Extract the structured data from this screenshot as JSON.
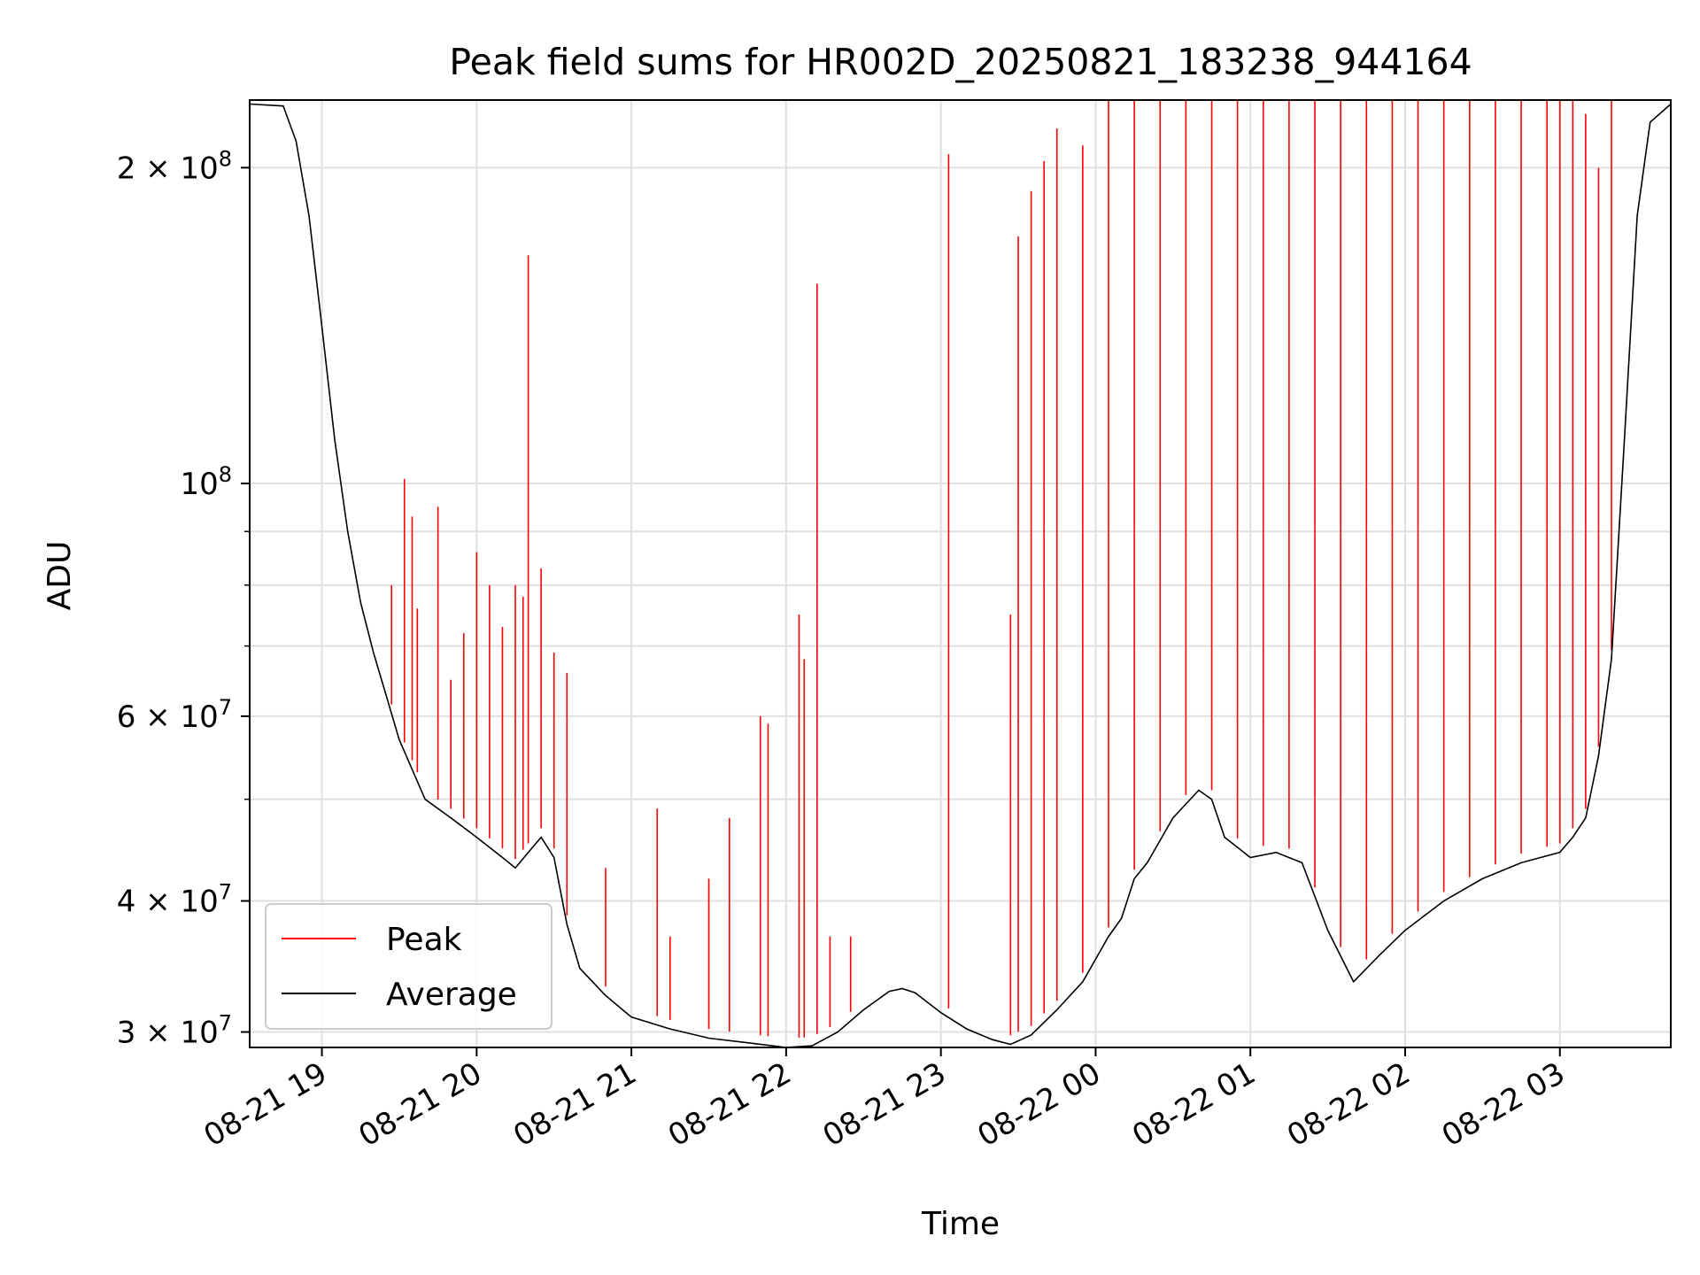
{
  "chart_data": {
    "type": "line",
    "title": "Peak field sums for HR002D_20250821_183238_944164",
    "xlabel": "Time",
    "ylabel": "ADU",
    "x_scale": "time",
    "y_scale": "log",
    "xlim": [
      "2025-08-21 18:32",
      "2025-08-22 03:43"
    ],
    "ylim": [
      29000000.0,
      232000000.0
    ],
    "x_ticks": [
      "2025-08-21 19:00",
      "2025-08-21 20:00",
      "2025-08-21 21:00",
      "2025-08-21 22:00",
      "2025-08-21 23:00",
      "2025-08-22 00:00",
      "2025-08-22 01:00",
      "2025-08-22 02:00",
      "2025-08-22 03:00"
    ],
    "x_tick_labels": [
      "08-21 19",
      "08-21 20",
      "08-21 21",
      "08-21 22",
      "08-21 23",
      "08-22 00",
      "08-22 01",
      "08-22 02",
      "08-22 03"
    ],
    "y_major_ticks": [
      {
        "value": 30000000.0,
        "mantissa": "3",
        "exp": "7"
      },
      {
        "value": 40000000.0,
        "mantissa": "4",
        "exp": "7"
      },
      {
        "value": 60000000.0,
        "mantissa": "6",
        "exp": "7"
      },
      {
        "value": 100000000.0,
        "mantissa": "",
        "exp": "8"
      },
      {
        "value": 200000000.0,
        "mantissa": "2",
        "exp": "8"
      }
    ],
    "y_minor_ticks": [
      50000000.0,
      70000000.0,
      80000000.0,
      90000000.0
    ],
    "grid": true,
    "legend": "lower-left",
    "colors": {
      "peak": "#ff0000",
      "average": "#000000",
      "grid": "#e0e0e0"
    },
    "series": [
      {
        "name": "Average",
        "color": "#000000",
        "x": [
          "2025-08-21 18:32",
          "2025-08-21 18:45",
          "2025-08-21 18:50",
          "2025-08-21 18:55",
          "2025-08-21 19:00",
          "2025-08-21 19:05",
          "2025-08-21 19:10",
          "2025-08-21 19:15",
          "2025-08-21 19:20",
          "2025-08-21 19:30",
          "2025-08-21 19:40",
          "2025-08-21 19:50",
          "2025-08-21 20:00",
          "2025-08-21 20:10",
          "2025-08-21 20:15",
          "2025-08-21 20:20",
          "2025-08-21 20:25",
          "2025-08-21 20:30",
          "2025-08-21 20:35",
          "2025-08-21 20:40",
          "2025-08-21 20:50",
          "2025-08-21 21:00",
          "2025-08-21 21:15",
          "2025-08-21 21:30",
          "2025-08-21 21:45",
          "2025-08-21 22:00",
          "2025-08-21 22:10",
          "2025-08-21 22:20",
          "2025-08-21 22:30",
          "2025-08-21 22:40",
          "2025-08-21 22:45",
          "2025-08-21 22:50",
          "2025-08-21 23:00",
          "2025-08-21 23:10",
          "2025-08-21 23:20",
          "2025-08-21 23:27",
          "2025-08-21 23:35",
          "2025-08-21 23:45",
          "2025-08-21 23:55",
          "2025-08-22 00:05",
          "2025-08-22 00:10",
          "2025-08-22 00:15",
          "2025-08-22 00:20",
          "2025-08-22 00:30",
          "2025-08-22 00:40",
          "2025-08-22 00:45",
          "2025-08-22 00:50",
          "2025-08-22 01:00",
          "2025-08-22 01:10",
          "2025-08-22 01:20",
          "2025-08-22 01:30",
          "2025-08-22 01:40",
          "2025-08-22 01:50",
          "2025-08-22 02:00",
          "2025-08-22 02:15",
          "2025-08-22 02:30",
          "2025-08-22 02:45",
          "2025-08-22 03:00",
          "2025-08-22 03:05",
          "2025-08-22 03:10",
          "2025-08-22 03:15",
          "2025-08-22 03:20",
          "2025-08-22 03:25",
          "2025-08-22 03:30",
          "2025-08-22 03:35",
          "2025-08-22 03:43"
        ],
        "values": [
          230000000.0,
          229000000.0,
          212000000.0,
          180000000.0,
          141000000.0,
          110000000.0,
          90000000.0,
          77000000.0,
          69000000.0,
          57000000.0,
          50000000.0,
          48000000.0,
          46000000.0,
          44000000.0,
          43000000.0,
          44500000.0,
          46000000.0,
          44000000.0,
          38000000.0,
          34500000.0,
          32500000.0,
          31000000.0,
          30200000.0,
          29600000.0,
          29300000.0,
          29000000.0,
          29100000.0,
          30000000.0,
          31500000.0,
          32800000.0,
          33000000.0,
          32700000.0,
          31300000.0,
          30200000.0,
          29500000.0,
          29200000.0,
          29800000.0,
          31500000.0,
          33500000.0,
          37000000.0,
          38500000.0,
          42000000.0,
          43500000.0,
          48000000.0,
          51000000.0,
          50000000.0,
          46000000.0,
          44000000.0,
          44500000.0,
          43500000.0,
          37500000.0,
          33500000.0,
          35500000.0,
          37500000.0,
          40000000.0,
          42000000.0,
          43500000.0,
          44500000.0,
          46000000.0,
          48000000.0,
          55000000.0,
          68000000.0,
          110000000.0,
          180000000.0,
          221000000.0,
          230000000.0
        ]
      },
      {
        "name": "Peak",
        "color": "#ff0000",
        "x": [
          "2025-08-21 19:27",
          "2025-08-21 19:32",
          "2025-08-21 19:35",
          "2025-08-21 19:37",
          "2025-08-21 19:45",
          "2025-08-21 19:50",
          "2025-08-21 19:55",
          "2025-08-21 20:00",
          "2025-08-21 20:05",
          "2025-08-21 20:10",
          "2025-08-21 20:15",
          "2025-08-21 20:18",
          "2025-08-21 20:20",
          "2025-08-21 20:25",
          "2025-08-21 20:30",
          "2025-08-21 20:35",
          "2025-08-21 20:50",
          "2025-08-21 21:10",
          "2025-08-21 21:15",
          "2025-08-21 21:30",
          "2025-08-21 21:38",
          "2025-08-21 21:50",
          "2025-08-21 21:53",
          "2025-08-21 22:05",
          "2025-08-21 22:07",
          "2025-08-21 22:12",
          "2025-08-21 22:17",
          "2025-08-21 22:25",
          "2025-08-21 23:03",
          "2025-08-21 23:27",
          "2025-08-21 23:30",
          "2025-08-21 23:35",
          "2025-08-21 23:40",
          "2025-08-21 23:45",
          "2025-08-21 23:55",
          "2025-08-22 00:05",
          "2025-08-22 00:15",
          "2025-08-22 00:25",
          "2025-08-22 00:35",
          "2025-08-22 00:45",
          "2025-08-22 00:55",
          "2025-08-22 01:05",
          "2025-08-22 01:15",
          "2025-08-22 01:25",
          "2025-08-22 01:35",
          "2025-08-22 01:45",
          "2025-08-22 01:55",
          "2025-08-22 02:05",
          "2025-08-22 02:15",
          "2025-08-22 02:25",
          "2025-08-22 02:35",
          "2025-08-22 02:45",
          "2025-08-22 02:55",
          "2025-08-22 03:00",
          "2025-08-22 03:05",
          "2025-08-22 03:10",
          "2025-08-22 03:15",
          "2025-08-22 03:20"
        ],
        "values": [
          80000000.0,
          101000000.0,
          93000000.0,
          76000000.0,
          95000000.0,
          65000000.0,
          72000000.0,
          86000000.0,
          80000000.0,
          73000000.0,
          80000000.0,
          78000000.0,
          165000000.0,
          83000000.0,
          69000000.0,
          66000000.0,
          43000000.0,
          49000000.0,
          37000000.0,
          42000000.0,
          48000000.0,
          60000000.0,
          59000000.0,
          75000000.0,
          68000000.0,
          155000000.0,
          37000000.0,
          37000000.0,
          206000000.0,
          75000000.0,
          172000000.0,
          190000000.0,
          203000000.0,
          218000000.0,
          210000000.0,
          232000000.0,
          232000000.0,
          232000000.0,
          232000000.0,
          232000000.0,
          232000000.0,
          232000000.0,
          232000000.0,
          232000000.0,
          232000000.0,
          232000000.0,
          232000000.0,
          232000000.0,
          232000000.0,
          232000000.0,
          232000000.0,
          232000000.0,
          232000000.0,
          232000000.0,
          232000000.0,
          225000000.0,
          200000000.0,
          232000000.0
        ]
      }
    ]
  }
}
